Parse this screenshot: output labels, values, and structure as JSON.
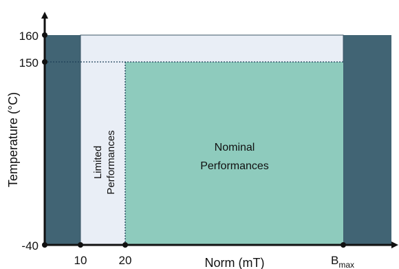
{
  "axes": {
    "x_label": "Norm (mT)",
    "y_label": "Temperature (°C)",
    "x_ticks": [
      "10",
      "20"
    ],
    "x_tick_bmax": {
      "base": "B",
      "subscript": "max"
    },
    "y_ticks": [
      "160",
      "150",
      "-40"
    ]
  },
  "regions": {
    "limited_line1": "Limited",
    "limited_line2": "Performances",
    "nominal_line1": "Nominal",
    "nominal_line2": "Performances"
  },
  "colors": {
    "outer_band": "#416474",
    "limited_zone": "#e9eef6",
    "nominal_zone": "#8ecbbd",
    "axis": "#111111",
    "dotted_line": "#1d3f58"
  }
}
